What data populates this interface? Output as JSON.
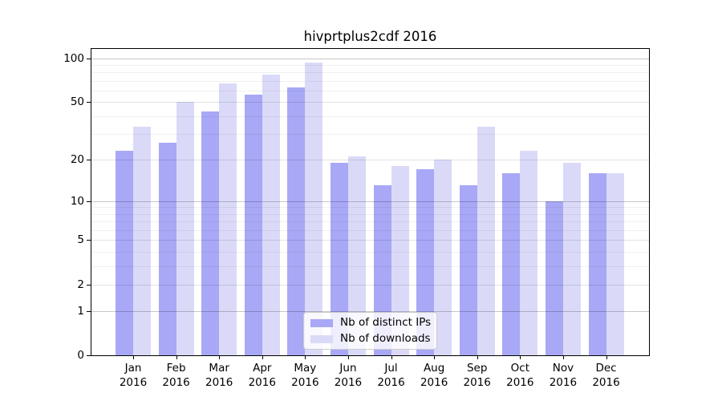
{
  "title": "hivprtplus2cdf 2016",
  "legend": {
    "items": [
      {
        "label": "Nb of distinct IPs",
        "color": "#a8a8f6"
      },
      {
        "label": "Nb of downloads",
        "color": "#dadaf8"
      }
    ]
  },
  "chart_data": {
    "type": "bar",
    "title": "hivprtplus2cdf 2016",
    "categories": [
      "Jan 2016",
      "Feb 2016",
      "Mar 2016",
      "Apr 2016",
      "May 2016",
      "Jun 2016",
      "Jul 2016",
      "Aug 2016",
      "Sep 2016",
      "Oct 2016",
      "Nov 2016",
      "Dec 2016"
    ],
    "x_tick_labels_line1": [
      "Jan",
      "Feb",
      "Mar",
      "Apr",
      "May",
      "Jun",
      "Jul",
      "Aug",
      "Sep",
      "Oct",
      "Nov",
      "Dec"
    ],
    "x_tick_labels_line2": [
      "2016",
      "2016",
      "2016",
      "2016",
      "2016",
      "2016",
      "2016",
      "2016",
      "2016",
      "2016",
      "2016",
      "2016"
    ],
    "series": [
      {
        "name": "Nb of distinct IPs",
        "color": "#a8a8f6",
        "values": [
          23,
          26,
          43,
          56,
          63,
          19,
          13,
          17,
          13,
          16,
          10,
          16
        ]
      },
      {
        "name": "Nb of downloads",
        "color": "#dadaf8",
        "values": [
          34,
          50,
          67,
          77,
          93,
          21,
          18,
          20,
          34,
          23,
          19,
          16
        ]
      }
    ],
    "yscale": "log1p",
    "y_tick_labels": [
      "100",
      "50",
      "20",
      "10",
      "5",
      "2",
      "1",
      "0"
    ],
    "y_major_ticks": [
      100,
      50,
      20,
      10,
      5,
      2,
      1,
      0
    ],
    "y_power_gridlines": [
      1,
      10,
      100
    ],
    "y_mid_gridlines": [
      2,
      5,
      20,
      50
    ],
    "y_minor_gridlines": [
      3,
      4,
      6,
      7,
      8,
      9,
      30,
      40,
      60,
      70,
      80,
      90
    ],
    "ylim": [
      0,
      117
    ],
    "grid": true,
    "legend_position": "lower center inside"
  }
}
